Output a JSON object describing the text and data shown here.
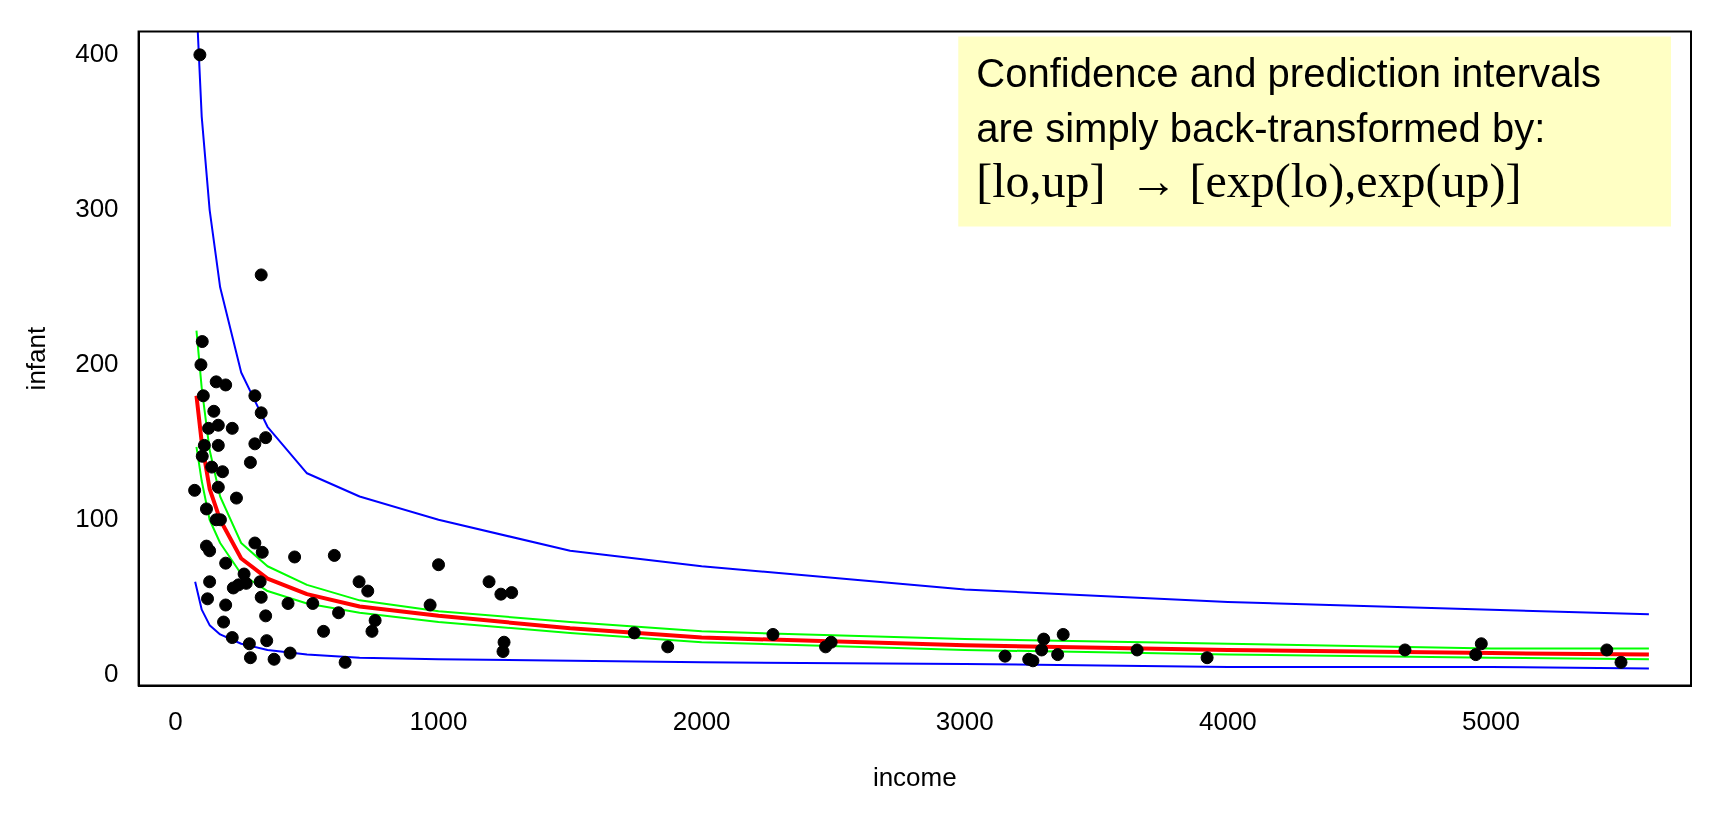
{
  "chart_data": {
    "type": "scatter",
    "xlabel": "income",
    "ylabel": "infant",
    "xlim": [
      -140,
      5760
    ],
    "ylim": [
      -7,
      415
    ],
    "xticks": [
      0,
      1000,
      2000,
      3000,
      4000,
      5000
    ],
    "yticks": [
      0,
      100,
      200,
      300,
      400
    ],
    "grid": false,
    "legend": false,
    "annotations": [
      "Confidence and prediction intervals",
      "are simply back-transformed by:",
      "[lo,up]  → [exp(lo),exp(up)]"
    ],
    "series": [
      {
        "type": "scatter",
        "color": "#000000",
        "marker": "circle",
        "x": [
          93,
          326,
          102,
          97,
          155,
          191,
          106,
          302,
          146,
          326,
          126,
          216,
          163,
          110,
          163,
          302,
          343,
          102,
          285,
          138,
          179,
          73,
          163,
          232,
          118,
          155,
          171,
          118,
          130,
          302,
          330,
          453,
          604,
          191,
          261,
          130,
          322,
          220,
          240,
          269,
          698,
          731,
          1000,
          1192,
          1237,
          1278,
          122,
          191,
          326,
          428,
          522,
          183,
          343,
          620,
          759,
          216,
          347,
          281,
          563,
          747,
          968,
          1249,
          1245,
          436,
          285,
          375,
          645,
          1744,
          1871,
          2271,
          2471,
          2492,
          3153,
          3243,
          3259,
          3300,
          3292,
          3353,
          3374,
          3655,
          3921,
          4673,
          4963,
          4942,
          5440,
          5494
        ],
        "values": [
          400,
          258,
          215,
          200,
          189,
          187,
          180,
          180,
          170,
          169,
          159,
          159,
          161,
          148,
          148,
          149,
          153,
          141,
          137,
          134,
          131,
          119,
          121,
          114,
          107,
          100,
          100,
          83,
          80,
          85,
          79,
          76,
          77,
          72,
          65,
          60,
          60,
          56,
          58,
          59,
          60,
          54,
          71,
          60,
          52,
          53,
          49,
          45,
          50,
          46,
          46,
          34,
          38,
          40,
          35,
          24,
          22,
          20,
          28,
          28,
          45,
          21,
          15,
          14,
          11,
          10,
          8,
          27,
          18,
          26,
          18,
          21,
          12,
          10,
          9,
          23,
          16,
          13,
          26,
          16,
          11,
          16,
          20,
          13,
          16,
          8
        ]
      },
      {
        "type": "line",
        "color": "#0000ff",
        "marker": "none",
        "x": [
          85,
          100,
          130,
          170,
          250,
          350,
          500,
          700,
          1000,
          1500,
          2000,
          3000,
          4000,
          5000,
          5600
        ],
        "values": [
          415,
          360,
          300,
          250,
          195,
          160,
          130,
          115,
          100,
          80,
          70,
          55,
          47,
          42,
          39
        ]
      },
      {
        "type": "line",
        "color": "#0000ff",
        "marker": "none",
        "x": [
          75,
          100,
          130,
          170,
          250,
          350,
          500,
          700,
          1000,
          2000,
          3000,
          4000,
          5000,
          5600
        ],
        "values": [
          60,
          42,
          32,
          26,
          20,
          16,
          13,
          11,
          10,
          8,
          7,
          5,
          5,
          4
        ]
      },
      {
        "type": "line",
        "color": "#00ff00",
        "marker": "none",
        "x": [
          80,
          100,
          130,
          170,
          250,
          350,
          500,
          700,
          1000,
          1500,
          2000,
          3000,
          4000,
          5000,
          5600
        ],
        "values": [
          222,
          185,
          145,
          115,
          85,
          70,
          58,
          48,
          41,
          34,
          28,
          23,
          20,
          17,
          17
        ]
      },
      {
        "type": "line",
        "color": "#00ff00",
        "marker": "none",
        "x": [
          80,
          100,
          130,
          170,
          250,
          350,
          500,
          700,
          1000,
          1500,
          2000,
          3000,
          4000,
          5000,
          5600
        ],
        "values": [
          147,
          125,
          100,
          85,
          65,
          54,
          46,
          40,
          34,
          27,
          21,
          16,
          13,
          11,
          10
        ]
      },
      {
        "type": "line",
        "color": "#ff0000",
        "marker": "none",
        "x": [
          80,
          100,
          130,
          170,
          250,
          350,
          500,
          700,
          1000,
          1500,
          2000,
          3000,
          4000,
          5000,
          5600
        ],
        "values": [
          180,
          150,
          120,
          100,
          75,
          62,
          52,
          44,
          38,
          30,
          24,
          19,
          16,
          14,
          13
        ]
      }
    ]
  }
}
